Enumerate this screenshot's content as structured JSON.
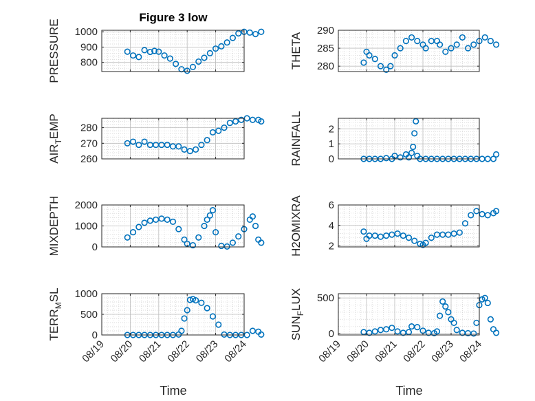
{
  "figure": {
    "title": "Figure 3 low",
    "xlabel": "Time",
    "x_ticks": [
      "08/19",
      "08/20",
      "08/21",
      "08/22",
      "08/23",
      "08/24"
    ],
    "marker_color": "#0072BD"
  },
  "chart_data": [
    {
      "type": "scatter",
      "name": "PRESSURE",
      "ylabel_main": "PRESSURE",
      "ylabel_sub": "",
      "ylim": [
        740,
        1010
      ],
      "yticks": [
        800,
        900,
        1000
      ],
      "x": [
        0.9,
        1.1,
        1.3,
        1.5,
        1.7,
        1.85,
        2.0,
        2.2,
        2.4,
        2.6,
        2.8,
        3.0,
        3.2,
        3.4,
        3.6,
        3.8,
        4.0,
        4.2,
        4.4,
        4.6,
        4.8,
        5.0,
        5.2,
        5.4,
        5.6
      ],
      "y": [
        870,
        845,
        835,
        880,
        868,
        875,
        870,
        845,
        825,
        790,
        755,
        745,
        770,
        805,
        830,
        860,
        890,
        905,
        930,
        960,
        990,
        1000,
        995,
        985,
        1000
      ]
    },
    {
      "type": "scatter",
      "name": "THETA",
      "ylabel_main": "THETA",
      "ylabel_sub": "",
      "ylim": [
        278.5,
        290
      ],
      "yticks": [
        280,
        285,
        290
      ],
      "x": [
        0.9,
        1.0,
        1.1,
        1.3,
        1.5,
        1.7,
        1.85,
        2.0,
        2.2,
        2.4,
        2.6,
        2.8,
        3.0,
        3.1,
        3.3,
        3.5,
        3.6,
        3.8,
        4.0,
        4.2,
        4.4,
        4.6,
        4.8,
        5.0,
        5.2,
        5.4,
        5.6
      ],
      "y": [
        281,
        284,
        283,
        282,
        280,
        279,
        280,
        283,
        285,
        287,
        288,
        287,
        286,
        285,
        287,
        287,
        286,
        284,
        285,
        286,
        288,
        285,
        286,
        287,
        288,
        287,
        286
      ]
    },
    {
      "type": "scatter",
      "name": "AIR_TEMP",
      "ylabel_main": "AIR",
      "ylabel_sub": "T",
      "ylabel_tail": "EMP",
      "ylim": [
        260,
        286
      ],
      "yticks": [
        260,
        270,
        280
      ],
      "x": [
        0.9,
        1.1,
        1.3,
        1.5,
        1.7,
        1.9,
        2.1,
        2.3,
        2.5,
        2.7,
        2.9,
        3.1,
        3.3,
        3.5,
        3.7,
        3.9,
        4.1,
        4.3,
        4.5,
        4.7,
        4.9,
        5.1,
        5.3,
        5.5,
        5.6
      ],
      "y": [
        270,
        271,
        269,
        271,
        269,
        269,
        269,
        269,
        268,
        268,
        266,
        265,
        266,
        269,
        272,
        277,
        278,
        280,
        283,
        284,
        285,
        286,
        285,
        285,
        284
      ]
    },
    {
      "type": "scatter",
      "name": "RAINFALL",
      "ylabel_main": "RAINFALL",
      "ylabel_sub": "",
      "ylim": [
        0,
        2.7
      ],
      "yticks": [
        0,
        1,
        2
      ],
      "x": [
        0.9,
        1.1,
        1.3,
        1.5,
        1.7,
        1.9,
        2.0,
        2.2,
        2.4,
        2.5,
        2.6,
        2.65,
        2.7,
        2.75,
        2.8,
        2.9,
        3.1,
        3.3,
        3.5,
        3.7,
        3.9,
        4.1,
        4.3,
        4.5,
        4.7,
        4.9,
        5.1,
        5.3,
        5.5,
        5.6
      ],
      "y": [
        0,
        0,
        0,
        0,
        0.05,
        0,
        0.2,
        0.1,
        0.3,
        0.1,
        0.4,
        0.8,
        1.7,
        2.5,
        0.2,
        0,
        0,
        0,
        0,
        0,
        0,
        0,
        0,
        0,
        0,
        0,
        0,
        0,
        0,
        0.3
      ]
    },
    {
      "type": "scatter",
      "name": "MIXDEPTH",
      "ylabel_main": "MIXDEPTH",
      "ylabel_sub": "",
      "ylim": [
        0,
        2000
      ],
      "yticks": [
        0,
        1000,
        2000
      ],
      "x": [
        0.9,
        1.1,
        1.3,
        1.5,
        1.7,
        1.9,
        2.1,
        2.3,
        2.5,
        2.7,
        2.9,
        3.0,
        3.2,
        3.4,
        3.6,
        3.7,
        3.8,
        3.9,
        4.0,
        4.2,
        4.4,
        4.6,
        4.8,
        5.0,
        5.2,
        5.3,
        5.4,
        5.5,
        5.6
      ],
      "y": [
        450,
        700,
        950,
        1150,
        1250,
        1300,
        1350,
        1300,
        1200,
        850,
        350,
        150,
        80,
        450,
        1000,
        1300,
        1500,
        1750,
        700,
        50,
        20,
        200,
        500,
        850,
        1300,
        1450,
        1000,
        350,
        200
      ]
    },
    {
      "type": "scatter",
      "name": "H2OMIXRA",
      "ylabel_main": "H2OMIXRA",
      "ylabel_sub": "",
      "ylim": [
        1.9,
        6
      ],
      "yticks": [
        2,
        4,
        6
      ],
      "x": [
        0.9,
        1.0,
        1.1,
        1.3,
        1.5,
        1.7,
        1.9,
        2.1,
        2.3,
        2.5,
        2.7,
        2.9,
        3.0,
        3.1,
        3.3,
        3.5,
        3.7,
        3.9,
        4.1,
        4.3,
        4.5,
        4.7,
        4.9,
        5.1,
        5.3,
        5.5,
        5.6
      ],
      "y": [
        3.4,
        2.7,
        3.0,
        3.0,
        2.9,
        3.0,
        3.1,
        3.2,
        3.0,
        2.8,
        2.5,
        2.2,
        2.1,
        2.3,
        2.8,
        3.1,
        3.1,
        3.1,
        3.2,
        3.3,
        4.2,
        5.0,
        5.4,
        5.1,
        5.0,
        5.2,
        5.4
      ]
    },
    {
      "type": "scatter",
      "name": "TERR_MSL",
      "ylabel_main": "TERR",
      "ylabel_sub": "M",
      "ylabel_tail": "SL",
      "ylim": [
        0,
        1000
      ],
      "yticks": [
        0,
        500,
        1000
      ],
      "x": [
        0.9,
        1.1,
        1.3,
        1.5,
        1.7,
        1.9,
        2.1,
        2.3,
        2.5,
        2.7,
        2.8,
        2.9,
        3.0,
        3.1,
        3.2,
        3.3,
        3.5,
        3.7,
        3.9,
        4.1,
        4.3,
        4.5,
        4.7,
        4.9,
        5.1,
        5.3,
        5.5,
        5.6
      ],
      "y": [
        0,
        0,
        0,
        0,
        0,
        0,
        0,
        0,
        0,
        10,
        100,
        400,
        600,
        850,
        870,
        840,
        780,
        650,
        450,
        250,
        10,
        0,
        0,
        0,
        0,
        100,
        80,
        10
      ]
    },
    {
      "type": "scatter",
      "name": "SUN_FLUX",
      "ylabel_main": "SUN",
      "ylabel_sub": "F",
      "ylabel_tail": "LUX",
      "ylim": [
        -20,
        560
      ],
      "yticks": [
        0,
        500
      ],
      "x": [
        0.9,
        1.1,
        1.3,
        1.5,
        1.7,
        1.9,
        2.1,
        2.3,
        2.5,
        2.6,
        2.8,
        3.0,
        3.2,
        3.4,
        3.5,
        3.6,
        3.7,
        3.8,
        3.9,
        4.0,
        4.1,
        4.2,
        4.4,
        4.6,
        4.8,
        4.9,
        5.0,
        5.1,
        5.2,
        5.3,
        5.4,
        5.5,
        5.6
      ],
      "y": [
        20,
        10,
        30,
        50,
        60,
        80,
        30,
        10,
        20,
        100,
        90,
        40,
        10,
        5,
        30,
        250,
        450,
        380,
        300,
        200,
        150,
        50,
        10,
        5,
        0,
        150,
        400,
        480,
        500,
        430,
        200,
        60,
        10
      ]
    }
  ]
}
